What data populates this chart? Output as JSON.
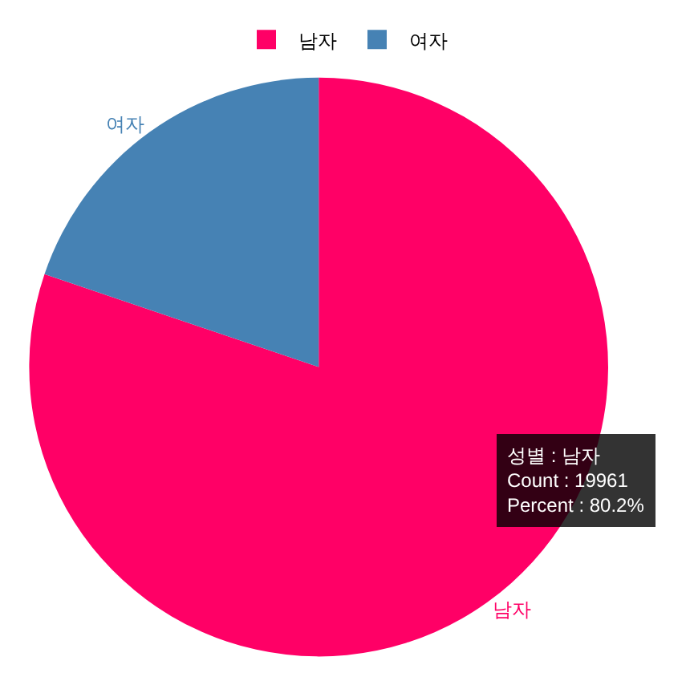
{
  "chart_data": {
    "type": "pie",
    "categories": [
      "남자",
      "여자"
    ],
    "values": [
      80.2,
      19.8
    ],
    "colors": [
      "#ff0066",
      "#4682b4"
    ],
    "legend": "top",
    "annotations": [
      "성별 : 남자",
      "Count : 19961",
      "Percent : 80.2%"
    ]
  }
}
